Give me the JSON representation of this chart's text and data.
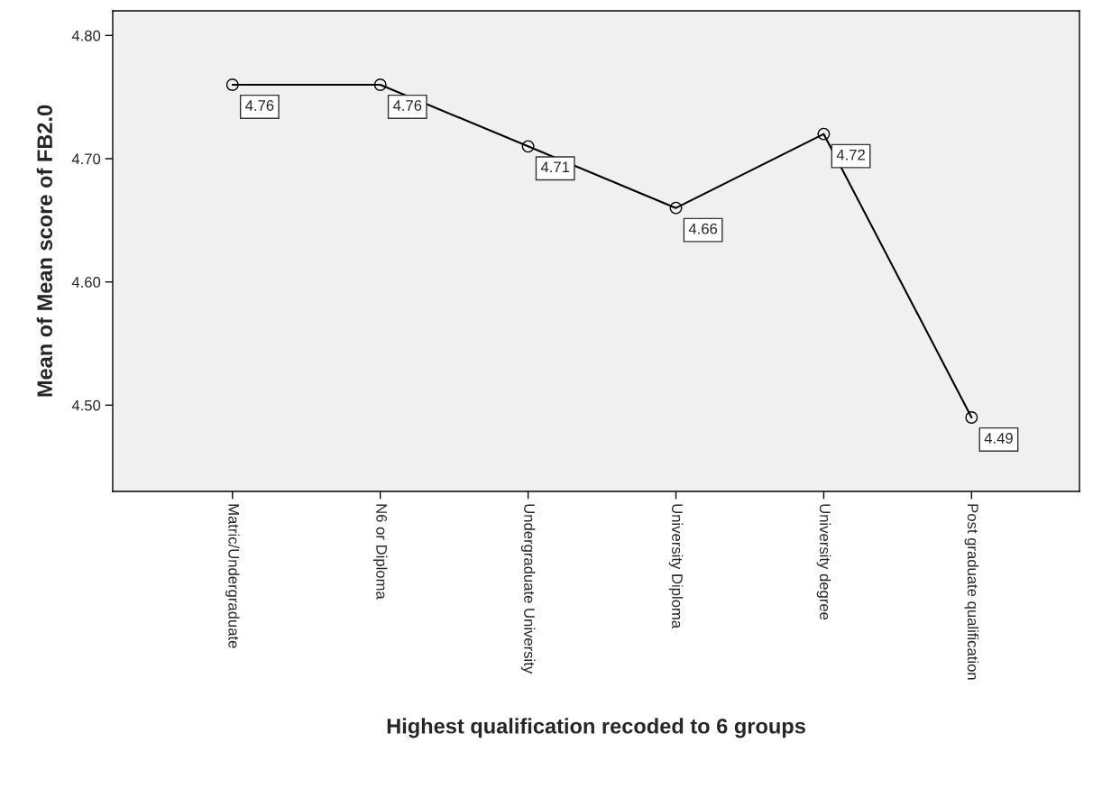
{
  "chart_data": {
    "type": "line",
    "xlabel": "Highest qualification recoded to 6 groups",
    "ylabel": "Mean of Mean score of FB2.0",
    "categories": [
      "Matric/Undergraduate",
      "N6 or Diploma",
      "Undergraduate University",
      "University Diploma",
      "University degree",
      "Post graduate qualification"
    ],
    "values": [
      4.76,
      4.76,
      4.71,
      4.66,
      4.72,
      4.49
    ],
    "color": "#000000",
    "marker": "circle",
    "line_style": "solid",
    "data_labels": true,
    "grid": false,
    "legend": false,
    "ylim": [
      4.43,
      4.82
    ],
    "yticks": [
      {
        "value": 4.5,
        "label": "4.50"
      },
      {
        "value": 4.6,
        "label": "4.60"
      },
      {
        "value": 4.7,
        "label": "4.70"
      },
      {
        "value": 4.8,
        "label": "4.80"
      }
    ]
  }
}
